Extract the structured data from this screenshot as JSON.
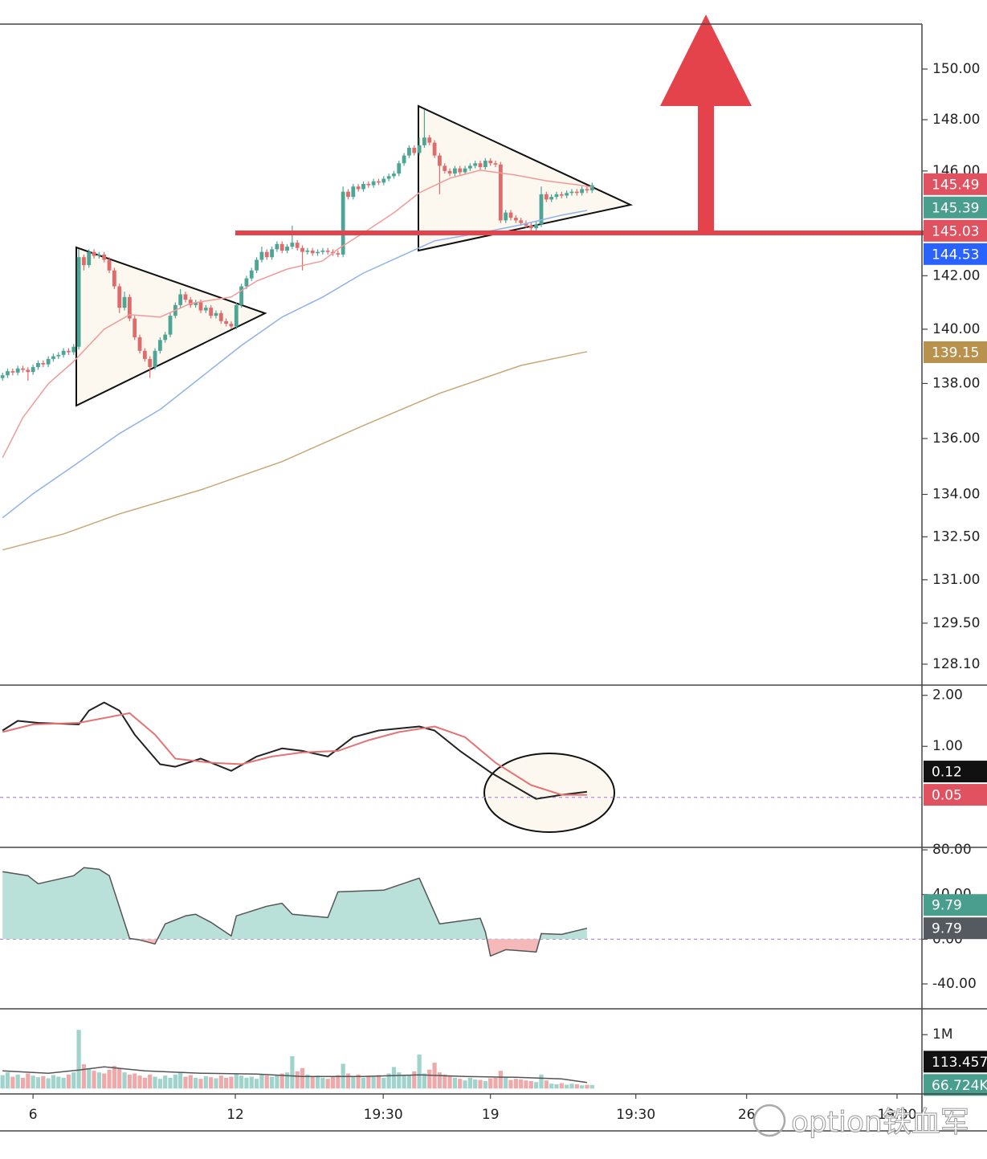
{
  "watermark": "option铁血军",
  "chart_data": [
    {
      "type": "candlestick",
      "log": true,
      "xlim": [
        -0.5,
        180.9
      ],
      "ylim": [
        127.39,
        151.8
      ],
      "up_color": "#4da595",
      "down_color": "#e06b6b",
      "yticks": [
        {
          "value": 150,
          "label": "150.00"
        },
        {
          "value": 148,
          "label": "148.00"
        },
        {
          "value": 146,
          "label": "146.00"
        },
        {
          "value": 142,
          "label": "142.00"
        },
        {
          "value": 140,
          "label": "140.00"
        },
        {
          "value": 138,
          "label": "138.00"
        },
        {
          "value": 136,
          "label": "136.00"
        },
        {
          "value": 134,
          "label": "134.00"
        },
        {
          "value": 132.5,
          "label": "132.50"
        },
        {
          "value": 131,
          "label": "131.00"
        },
        {
          "value": 129.5,
          "label": "129.50"
        },
        {
          "value": 128.1,
          "label": "128.10"
        }
      ],
      "open": [
        138.2,
        138.3,
        138.45,
        138.4,
        138.55,
        138.5,
        138.42,
        138.6,
        138.75,
        138.7,
        138.9,
        139.0,
        139.05,
        139.2,
        139.15,
        139.35,
        142.7,
        142.4,
        142.9,
        142.75,
        142.8,
        142.6,
        142.2,
        141.6,
        140.8,
        141.2,
        140.4,
        139.7,
        139.2,
        138.9,
        138.6,
        139.2,
        139.6,
        139.8,
        140.5,
        140.9,
        141.3,
        141.1,
        140.9,
        141.0,
        140.7,
        140.8,
        140.5,
        140.6,
        140.3,
        140.2,
        140.1,
        140.9,
        141.6,
        141.9,
        142.2,
        142.6,
        142.9,
        142.7,
        143.0,
        143.2,
        142.95,
        143.1,
        143.25,
        143.05,
        142.9,
        142.95,
        142.85,
        142.9,
        142.95,
        142.9,
        142.85,
        142.8,
        145.2,
        145.0,
        145.4,
        145.3,
        145.5,
        145.45,
        145.6,
        145.55,
        145.7,
        145.8,
        145.9,
        146.3,
        146.6,
        146.9,
        146.7,
        147.0,
        147.3,
        147.1,
        146.6,
        146.2,
        146.0,
        145.9,
        146.1,
        145.95,
        146.1,
        146.2,
        146.3,
        146.15,
        146.4,
        146.3,
        146.25,
        144.1,
        144.4,
        144.2,
        144.1,
        144.0,
        143.9,
        143.8,
        143.95,
        145.1,
        144.9,
        145.0,
        145.1,
        145.05,
        145.15,
        145.2,
        145.15,
        145.3,
        145.25
      ],
      "high": [
        138.4,
        138.55,
        138.55,
        138.65,
        138.65,
        138.6,
        138.7,
        138.85,
        138.85,
        139.0,
        139.1,
        139.15,
        139.3,
        139.3,
        139.45,
        143.0,
        142.8,
        143.0,
        143.0,
        142.9,
        142.9,
        142.7,
        142.3,
        141.7,
        141.4,
        141.3,
        140.5,
        139.8,
        139.3,
        139.0,
        139.3,
        139.7,
        139.9,
        140.6,
        141.0,
        141.5,
        141.4,
        141.2,
        141.1,
        141.1,
        140.9,
        140.9,
        140.7,
        140.7,
        140.4,
        140.3,
        141.0,
        141.7,
        142.0,
        142.3,
        142.7,
        143.1,
        143.0,
        143.1,
        143.3,
        143.3,
        143.2,
        143.9,
        143.35,
        143.15,
        143.05,
        143.05,
        143.0,
        143.05,
        143.05,
        143.0,
        142.95,
        145.4,
        145.3,
        145.5,
        145.5,
        145.6,
        145.6,
        145.7,
        145.7,
        145.8,
        145.9,
        146.0,
        146.4,
        146.7,
        147.0,
        147.0,
        147.3,
        148.4,
        147.4,
        147.2,
        146.7,
        146.3,
        146.1,
        146.2,
        146.2,
        146.2,
        146.3,
        146.4,
        146.4,
        146.5,
        146.5,
        146.4,
        146.35,
        144.5,
        144.5,
        144.3,
        144.2,
        144.1,
        144.0,
        144.05,
        145.4,
        145.2,
        145.1,
        145.2,
        145.2,
        145.25,
        145.3,
        145.3,
        145.4,
        145.4,
        145.55
      ],
      "low": [
        138.1,
        138.2,
        138.3,
        138.3,
        138.4,
        138.1,
        138.32,
        138.5,
        138.6,
        138.6,
        138.8,
        138.9,
        138.95,
        139.05,
        139.05,
        139.25,
        142.2,
        142.3,
        142.65,
        142.65,
        142.5,
        142.1,
        141.5,
        140.6,
        140.7,
        140.3,
        139.6,
        139.1,
        138.8,
        138.2,
        138.5,
        139.1,
        139.5,
        139.7,
        140.4,
        140.8,
        141.0,
        140.8,
        140.8,
        140.6,
        140.6,
        140.4,
        140.4,
        140.2,
        140.1,
        140.0,
        140.0,
        140.8,
        141.5,
        141.8,
        142.1,
        142.5,
        142.6,
        142.6,
        142.9,
        142.85,
        142.85,
        143.0,
        142.95,
        142.2,
        142.8,
        142.75,
        142.75,
        142.8,
        142.8,
        142.75,
        142.7,
        142.7,
        144.9,
        144.9,
        145.2,
        145.2,
        145.35,
        145.35,
        145.45,
        145.45,
        145.6,
        145.7,
        145.8,
        146.2,
        146.5,
        146.6,
        146.6,
        146.9,
        147.0,
        146.5,
        145.1,
        145.9,
        145.8,
        145.8,
        145.85,
        145.85,
        146.0,
        146.1,
        146.05,
        146.05,
        146.2,
        146.15,
        144.0,
        144.0,
        144.1,
        144.0,
        143.9,
        143.8,
        143.7,
        143.7,
        143.85,
        144.8,
        144.8,
        144.9,
        144.95,
        144.95,
        145.05,
        145.05,
        145.05,
        145.15,
        145.15
      ],
      "close": [
        138.3,
        138.45,
        138.4,
        138.55,
        138.5,
        138.42,
        138.6,
        138.75,
        138.7,
        138.9,
        139.0,
        139.05,
        139.2,
        139.15,
        139.35,
        142.7,
        142.4,
        142.9,
        142.75,
        142.8,
        142.6,
        142.2,
        141.6,
        140.8,
        141.2,
        140.4,
        139.7,
        139.2,
        138.9,
        138.6,
        139.2,
        139.6,
        139.8,
        140.5,
        140.9,
        141.3,
        141.1,
        140.9,
        141.0,
        140.7,
        140.8,
        140.5,
        140.6,
        140.3,
        140.2,
        140.1,
        140.9,
        141.6,
        141.9,
        142.2,
        142.6,
        142.9,
        142.7,
        143.0,
        143.2,
        142.95,
        143.1,
        143.25,
        143.05,
        142.9,
        142.95,
        142.85,
        142.9,
        142.95,
        142.9,
        142.85,
        142.8,
        145.2,
        145.0,
        145.4,
        145.3,
        145.5,
        145.45,
        145.6,
        145.55,
        145.7,
        145.8,
        145.9,
        146.3,
        146.6,
        146.9,
        146.7,
        147.0,
        147.3,
        147.1,
        146.6,
        146.2,
        146.0,
        145.9,
        146.1,
        145.95,
        146.1,
        146.2,
        146.3,
        146.15,
        146.4,
        146.3,
        146.25,
        144.1,
        144.4,
        144.2,
        144.1,
        144.0,
        143.9,
        143.8,
        143.95,
        145.1,
        144.9,
        145.0,
        145.1,
        145.05,
        145.15,
        145.2,
        145.15,
        145.3,
        145.25,
        145.45
      ],
      "series": [
        {
          "color": "#f19a9a",
          "x": [
            0,
            4,
            9,
            14,
            20,
            25,
            31,
            37,
            45,
            50,
            56,
            63,
            66,
            71,
            77,
            82,
            88,
            94,
            101,
            107,
            113,
            116
          ],
          "values": [
            135.31,
            136.76,
            137.99,
            138.81,
            140.0,
            140.54,
            140.45,
            140.96,
            141.2,
            141.8,
            142.25,
            142.56,
            143.01,
            143.62,
            144.39,
            145.16,
            145.72,
            146.03,
            145.84,
            145.62,
            145.47,
            145.38
          ]
        },
        {
          "color": "#8fb3e8",
          "x": [
            0,
            6,
            14,
            23,
            31,
            39,
            47,
            55,
            63,
            71,
            78,
            85,
            94,
            102,
            110,
            115
          ],
          "values": [
            133.17,
            134.02,
            135.02,
            136.18,
            137.05,
            138.22,
            139.4,
            140.45,
            141.2,
            142.1,
            142.71,
            143.32,
            143.62,
            143.93,
            144.3,
            144.48
          ]
        },
        {
          "color": "#c9a774",
          "x": [
            0,
            12,
            23,
            39,
            55,
            71,
            86,
            102,
            115
          ],
          "values": [
            132.04,
            132.6,
            133.31,
            134.16,
            135.17,
            136.47,
            137.64,
            138.66,
            139.17
          ]
        }
      ],
      "tags": [
        {
          "value": 145.49,
          "color": "#e05260"
        },
        {
          "value": 145.39,
          "color": "#4a9e8e"
        },
        {
          "value": 145.03,
          "color": "#e05260"
        },
        {
          "value": 144.53,
          "color": "#2962ff"
        },
        {
          "value": 139.15,
          "color": "#b8924d"
        }
      ]
    },
    {
      "type": "line",
      "xlim": [
        -0.5,
        180.9
      ],
      "ylim": [
        -0.98,
        2.2
      ],
      "yticks": [
        {
          "value": 2,
          "label": "2.00"
        },
        {
          "value": 1,
          "label": "1.00"
        }
      ],
      "hlines": [
        0
      ],
      "series": [
        {
          "color": "#222222",
          "x": [
            0,
            3,
            7,
            15,
            17,
            20,
            23,
            26,
            31,
            34,
            39,
            45,
            50,
            55,
            59,
            64,
            69,
            74,
            82,
            85,
            90,
            96,
            101,
            105,
            110,
            115
          ],
          "values": [
            1.31,
            1.5,
            1.46,
            1.43,
            1.7,
            1.86,
            1.7,
            1.23,
            0.65,
            0.6,
            0.76,
            0.52,
            0.8,
            0.96,
            0.91,
            0.8,
            1.18,
            1.31,
            1.39,
            1.31,
            0.91,
            0.49,
            0.2,
            -0.03,
            0.05,
            0.11
          ]
        },
        {
          "color": "#e57373",
          "x": [
            0,
            6,
            15,
            25,
            30,
            34,
            41,
            47,
            53,
            59,
            66,
            72,
            78,
            85,
            91,
            97,
            104,
            110,
            115
          ],
          "values": [
            1.28,
            1.43,
            1.46,
            1.65,
            1.23,
            0.76,
            0.68,
            0.65,
            0.8,
            0.88,
            0.91,
            1.12,
            1.28,
            1.39,
            1.18,
            0.68,
            0.24,
            0.05,
            0.05
          ]
        }
      ],
      "tags": [
        {
          "value": 0.12,
          "color": "#111111"
        },
        {
          "value": 0.05,
          "color": "#e05260"
        }
      ]
    },
    {
      "type": "area",
      "xlim": [
        -0.5,
        180.9
      ],
      "ylim": [
        -62.3,
        82.2
      ],
      "yticks": [
        {
          "value": 80,
          "label": "80.00"
        },
        {
          "value": 40,
          "label": "40.00"
        },
        {
          "value": 0,
          "label": "0.00"
        },
        {
          "value": -40,
          "label": "-40.00"
        }
      ],
      "hlines": [
        0
      ],
      "fill_positive": "#b9e1da",
      "fill_negative": "#f5b9b9",
      "series": [
        {
          "color": "#555555",
          "x": [
            0,
            5,
            7,
            14,
            16,
            19,
            21,
            25,
            27,
            30,
            32,
            36,
            38,
            41,
            45,
            46,
            52,
            55,
            57,
            64,
            66,
            75,
            82,
            86,
            94,
            95,
            96,
            99,
            105,
            106,
            110,
            115
          ],
          "values": [
            60.4,
            56.8,
            49.6,
            56.8,
            64.0,
            62.6,
            56.8,
            0.7,
            -0.7,
            -4.3,
            13.7,
            20.9,
            22.3,
            15.1,
            2.9,
            20.9,
            29.5,
            32.2,
            22.3,
            19.4,
            42.4,
            43.9,
            54.7,
            13.7,
            18.7,
            6.5,
            -15.1,
            -9.4,
            -11.5,
            5.0,
            4.3,
            9.79
          ]
        }
      ],
      "tags": [
        {
          "value": 9.79,
          "color": "#4a9e8e"
        },
        {
          "value": 9.79,
          "color": "#555a60"
        }
      ]
    },
    {
      "type": "bar",
      "xlim": [
        -0.5,
        180.9
      ],
      "ylim": [
        -100000,
        1480000
      ],
      "up_color": "#9fd3cb",
      "down_color": "#eeaaaa",
      "yticks": [
        {
          "value": 1000000,
          "label": "1M"
        }
      ],
      "xticks": [
        {
          "value": 6,
          "label": "6"
        },
        {
          "value": 45.8,
          "label": "12"
        },
        {
          "value": 74.9,
          "label": "19:30"
        },
        {
          "value": 96,
          "label": "19"
        },
        {
          "value": 124.6,
          "label": "19:30"
        },
        {
          "value": 146.4,
          "label": "26"
        },
        {
          "value": 176,
          "label": "19:30"
        }
      ],
      "values": [
        250000,
        300000,
        220000,
        260000,
        200000,
        280000,
        240000,
        210000,
        230000,
        190000,
        250000,
        220000,
        200000,
        260000,
        300000,
        1090000,
        450000,
        380000,
        330000,
        300000,
        280000,
        350000,
        420000,
        380000,
        300000,
        260000,
        280000,
        240000,
        200000,
        260000,
        220000,
        180000,
        240000,
        200000,
        260000,
        300000,
        220000,
        250000,
        200000,
        180000,
        230000,
        210000,
        190000,
        240000,
        200000,
        220000,
        280000,
        240000,
        200000,
        220000,
        180000,
        260000,
        240000,
        220000,
        250000,
        280000,
        300000,
        600000,
        320000,
        380000,
        260000,
        220000,
        240000,
        200000,
        180000,
        220000,
        250000,
        460000,
        280000,
        220000,
        260000,
        200000,
        240000,
        220000,
        250000,
        200000,
        280000,
        400000,
        300000,
        250000,
        260000,
        320000,
        630000,
        280000,
        350000,
        480000,
        300000,
        260000,
        240000,
        200000,
        180000,
        150000,
        200000,
        170000,
        160000,
        140000,
        190000,
        200000,
        330000,
        200000,
        160000,
        180000,
        170000,
        150000,
        140000,
        120000,
        260000,
        150000,
        90000,
        80000,
        100000,
        70000,
        90000,
        80000,
        60000,
        70000,
        66724
      ],
      "series": [
        {
          "color": "#555555",
          "x": [
            0,
            9,
            15,
            20,
            28,
            39,
            50,
            59,
            71,
            82,
            91,
            101,
            110,
            115
          ],
          "values": [
            328000,
            284000,
            343000,
            403000,
            328000,
            284000,
            269000,
            224000,
            224000,
            254000,
            224000,
            209000,
            179000,
            113457
          ]
        }
      ],
      "tags": [
        {
          "value": 113457,
          "label": "113.457",
          "color": "#111111"
        },
        {
          "value": 66724,
          "label": "66.724K",
          "color": "#4a9e8e"
        }
      ]
    }
  ]
}
